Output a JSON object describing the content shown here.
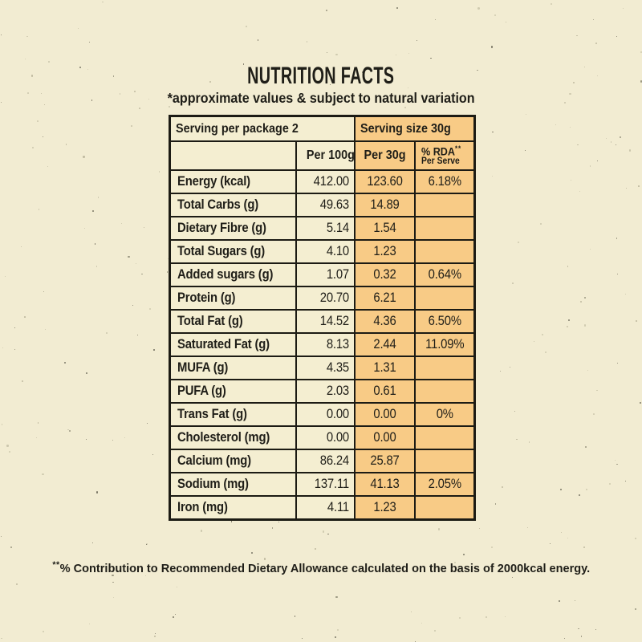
{
  "title": "NUTRITION FACTS",
  "subtitle": "*approximate values & subject to natural variation",
  "table": {
    "serving_per_package": "Serving per package 2",
    "serving_size": "Serving size 30g",
    "col_headers": {
      "per_100g": "Per 100g",
      "per_30g": "Per 30g",
      "rda_line1": "% RDA",
      "rda_sup": "**",
      "rda_line2": "Per Serve"
    },
    "rows": [
      {
        "label": "Energy (kcal)",
        "per_100g": "412.00",
        "per_30g": "123.60",
        "rda": "6.18%"
      },
      {
        "label": "Total Carbs (g)",
        "per_100g": "49.63",
        "per_30g": "14.89",
        "rda": ""
      },
      {
        "label": "Dietary Fibre (g)",
        "per_100g": "5.14",
        "per_30g": "1.54",
        "rda": ""
      },
      {
        "label": "Total Sugars (g)",
        "per_100g": "4.10",
        "per_30g": "1.23",
        "rda": ""
      },
      {
        "label": "Added sugars (g)",
        "per_100g": "1.07",
        "per_30g": "0.32",
        "rda": "0.64%"
      },
      {
        "label": "Protein (g)",
        "per_100g": "20.70",
        "per_30g": "6.21",
        "rda": ""
      },
      {
        "label": "Total Fat (g)",
        "per_100g": "14.52",
        "per_30g": "4.36",
        "rda": "6.50%"
      },
      {
        "label": "Saturated Fat (g)",
        "per_100g": "8.13",
        "per_30g": "2.44",
        "rda": "11.09%"
      },
      {
        "label": "MUFA (g)",
        "per_100g": "4.35",
        "per_30g": "1.31",
        "rda": ""
      },
      {
        "label": "PUFA (g)",
        "per_100g": "2.03",
        "per_30g": "0.61",
        "rda": ""
      },
      {
        "label": "Trans Fat (g)",
        "per_100g": "0.00",
        "per_30g": "0.00",
        "rda": "0%"
      },
      {
        "label": "Cholesterol (mg)",
        "per_100g": "0.00",
        "per_30g": "0.00",
        "rda": ""
      },
      {
        "label": "Calcium (mg)",
        "per_100g": "86.24",
        "per_30g": "25.87",
        "rda": ""
      },
      {
        "label": "Sodium (mg)",
        "per_100g": "137.11",
        "per_30g": "41.13",
        "rda": "2.05%"
      },
      {
        "label": "Iron (mg)",
        "per_100g": "4.11",
        "per_30g": "1.23",
        "rda": ""
      }
    ]
  },
  "footnote": {
    "sup": "**",
    "text": "% Contribution to Recommended Dietary Allowance calculated on the basis of 2000kcal energy."
  },
  "colors": {
    "background": "#F2ECD2",
    "cell_cream": "#F4EED1",
    "highlight_orange": "#F8CB86",
    "border": "#1C1B14",
    "text": "#1F1E18"
  }
}
